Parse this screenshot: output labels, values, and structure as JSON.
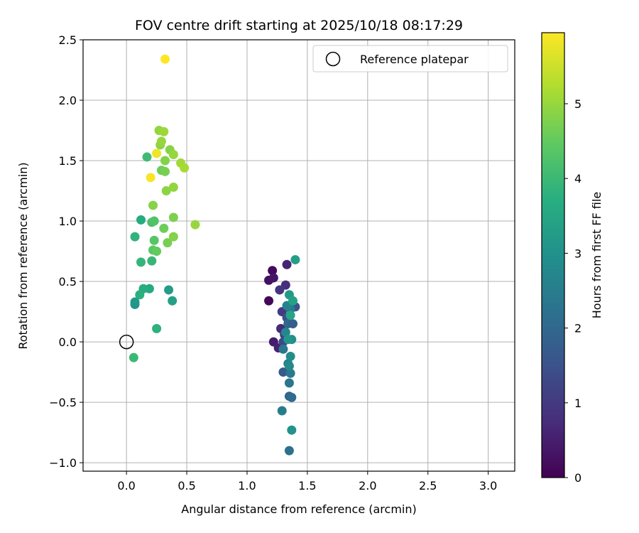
{
  "chart_data": {
    "type": "scatter",
    "title": "FOV centre drift starting at 2025/10/18 08:17:29",
    "xlabel": "Angular distance from reference (arcmin)",
    "ylabel": "Rotation from reference (arcmin)",
    "xlim": [
      -0.36,
      3.22
    ],
    "ylim": [
      -1.07,
      2.5
    ],
    "xticks": [
      0.0,
      0.5,
      1.0,
      1.5,
      2.0,
      2.5,
      3.0
    ],
    "xtick_labels": [
      "0.0",
      "0.5",
      "1.0",
      "1.5",
      "2.0",
      "2.5",
      "3.0"
    ],
    "yticks": [
      -1.0,
      -0.5,
      0.0,
      0.5,
      1.0,
      1.5,
      2.0,
      2.5
    ],
    "ytick_labels": [
      "−1.0",
      "−0.5",
      "0.0",
      "0.5",
      "1.0",
      "1.5",
      "2.0",
      "2.5"
    ],
    "grid": true,
    "legend": {
      "placement": "top-right",
      "entries": [
        {
          "label": "Reference platepar",
          "marker": "open-circle"
        }
      ]
    },
    "reference_point": {
      "x": 0.0,
      "y": 0.0,
      "label": "Reference platepar"
    },
    "colorbar": {
      "label": "Hours from first FF file",
      "colormap": "viridis",
      "range": [
        0,
        5.95
      ],
      "ticks": [
        0,
        1,
        2,
        3,
        4,
        5
      ],
      "tick_labels": [
        "0",
        "1",
        "2",
        "3",
        "4",
        "5"
      ]
    },
    "points": [
      {
        "x": 1.21,
        "y": 0.59,
        "h": 0.15
      },
      {
        "x": 1.18,
        "y": 0.51,
        "h": 0.25
      },
      {
        "x": 1.22,
        "y": 0.53,
        "h": 0.35
      },
      {
        "x": 1.18,
        "y": 0.34,
        "h": 0.1
      },
      {
        "x": 1.33,
        "y": 0.64,
        "h": 0.6
      },
      {
        "x": 1.32,
        "y": 0.47,
        "h": 0.75
      },
      {
        "x": 1.27,
        "y": 0.43,
        "h": 0.9
      },
      {
        "x": 1.22,
        "y": 0.0,
        "h": 0.45
      },
      {
        "x": 1.26,
        "y": -0.05,
        "h": 0.55
      },
      {
        "x": 1.28,
        "y": 0.11,
        "h": 0.7
      },
      {
        "x": 1.29,
        "y": 0.25,
        "h": 1.0
      },
      {
        "x": 1.31,
        "y": 0.06,
        "h": 1.1
      },
      {
        "x": 1.3,
        "y": 0.0,
        "h": 1.3
      },
      {
        "x": 1.33,
        "y": 0.2,
        "h": 1.45
      },
      {
        "x": 1.3,
        "y": -0.25,
        "h": 1.7
      },
      {
        "x": 1.35,
        "y": -0.45,
        "h": 1.9
      },
      {
        "x": 1.37,
        "y": -0.46,
        "h": 2.1
      },
      {
        "x": 1.35,
        "y": -0.34,
        "h": 2.3
      },
      {
        "x": 1.36,
        "y": -0.26,
        "h": 2.4
      },
      {
        "x": 1.34,
        "y": -0.18,
        "h": 2.6
      },
      {
        "x": 1.35,
        "y": -0.2,
        "h": 2.8
      },
      {
        "x": 1.36,
        "y": -0.12,
        "h": 2.9
      },
      {
        "x": 1.29,
        "y": -0.57,
        "h": 2.5
      },
      {
        "x": 1.37,
        "y": -0.73,
        "h": 3.0
      },
      {
        "x": 1.35,
        "y": -0.9,
        "h": 2.2
      },
      {
        "x": 1.32,
        "y": 0.08,
        "h": 2.7
      },
      {
        "x": 1.34,
        "y": 0.15,
        "h": 2.0
      },
      {
        "x": 1.38,
        "y": 0.15,
        "h": 1.8
      },
      {
        "x": 1.4,
        "y": 0.29,
        "h": 1.5
      },
      {
        "x": 1.36,
        "y": 0.27,
        "h": 2.45
      },
      {
        "x": 1.33,
        "y": 0.3,
        "h": 2.65
      },
      {
        "x": 1.37,
        "y": 0.02,
        "h": 2.95
      },
      {
        "x": 1.34,
        "y": 0.02,
        "h": 3.1
      },
      {
        "x": 1.3,
        "y": -0.06,
        "h": 2.35
      },
      {
        "x": 1.35,
        "y": 0.39,
        "h": 3.2
      },
      {
        "x": 1.38,
        "y": 0.34,
        "h": 3.4
      },
      {
        "x": 1.4,
        "y": 0.68,
        "h": 3.3
      },
      {
        "x": 1.36,
        "y": 0.22,
        "h": 3.5
      },
      {
        "x": 0.07,
        "y": 0.31,
        "h": 3.05
      },
      {
        "x": 0.07,
        "y": 0.33,
        "h": 3.15
      },
      {
        "x": 0.35,
        "y": 0.43,
        "h": 3.25
      },
      {
        "x": 0.38,
        "y": 0.34,
        "h": 3.35
      },
      {
        "x": 0.19,
        "y": 0.44,
        "h": 3.6
      },
      {
        "x": 0.14,
        "y": 0.44,
        "h": 3.7
      },
      {
        "x": 0.11,
        "y": 0.39,
        "h": 3.75
      },
      {
        "x": 0.12,
        "y": 1.01,
        "h": 3.65
      },
      {
        "x": 0.07,
        "y": 0.87,
        "h": 3.85
      },
      {
        "x": 0.12,
        "y": 0.66,
        "h": 3.9
      },
      {
        "x": 0.21,
        "y": 0.67,
        "h": 3.95
      },
      {
        "x": 0.25,
        "y": 0.11,
        "h": 3.8
      },
      {
        "x": 0.06,
        "y": -0.13,
        "h": 4.0
      },
      {
        "x": 0.17,
        "y": 1.53,
        "h": 4.05
      },
      {
        "x": 0.21,
        "y": 0.99,
        "h": 4.2
      },
      {
        "x": 0.23,
        "y": 1.0,
        "h": 4.3
      },
      {
        "x": 0.23,
        "y": 0.84,
        "h": 4.35
      },
      {
        "x": 0.22,
        "y": 0.76,
        "h": 4.4
      },
      {
        "x": 0.25,
        "y": 0.75,
        "h": 4.5
      },
      {
        "x": 0.31,
        "y": 0.94,
        "h": 4.6
      },
      {
        "x": 0.34,
        "y": 0.82,
        "h": 4.7
      },
      {
        "x": 0.39,
        "y": 1.03,
        "h": 4.75
      },
      {
        "x": 0.39,
        "y": 0.87,
        "h": 4.8
      },
      {
        "x": 0.22,
        "y": 1.13,
        "h": 4.85
      },
      {
        "x": 0.33,
        "y": 1.25,
        "h": 4.9
      },
      {
        "x": 0.39,
        "y": 1.28,
        "h": 4.95
      },
      {
        "x": 0.29,
        "y": 1.42,
        "h": 4.6
      },
      {
        "x": 0.32,
        "y": 1.41,
        "h": 4.7
      },
      {
        "x": 0.32,
        "y": 1.5,
        "h": 4.8
      },
      {
        "x": 0.28,
        "y": 1.63,
        "h": 4.9
      },
      {
        "x": 0.29,
        "y": 1.66,
        "h": 5.0
      },
      {
        "x": 0.27,
        "y": 1.75,
        "h": 4.95
      },
      {
        "x": 0.31,
        "y": 1.74,
        "h": 5.05
      },
      {
        "x": 0.36,
        "y": 1.59,
        "h": 4.85
      },
      {
        "x": 0.39,
        "y": 1.55,
        "h": 5.0
      },
      {
        "x": 0.45,
        "y": 1.48,
        "h": 5.1
      },
      {
        "x": 0.48,
        "y": 1.44,
        "h": 5.15
      },
      {
        "x": 0.57,
        "y": 0.97,
        "h": 5.0
      },
      {
        "x": 0.2,
        "y": 1.36,
        "h": 5.9
      },
      {
        "x": 0.25,
        "y": 1.56,
        "h": 5.8
      },
      {
        "x": 0.32,
        "y": 2.34,
        "h": 5.95
      }
    ]
  }
}
